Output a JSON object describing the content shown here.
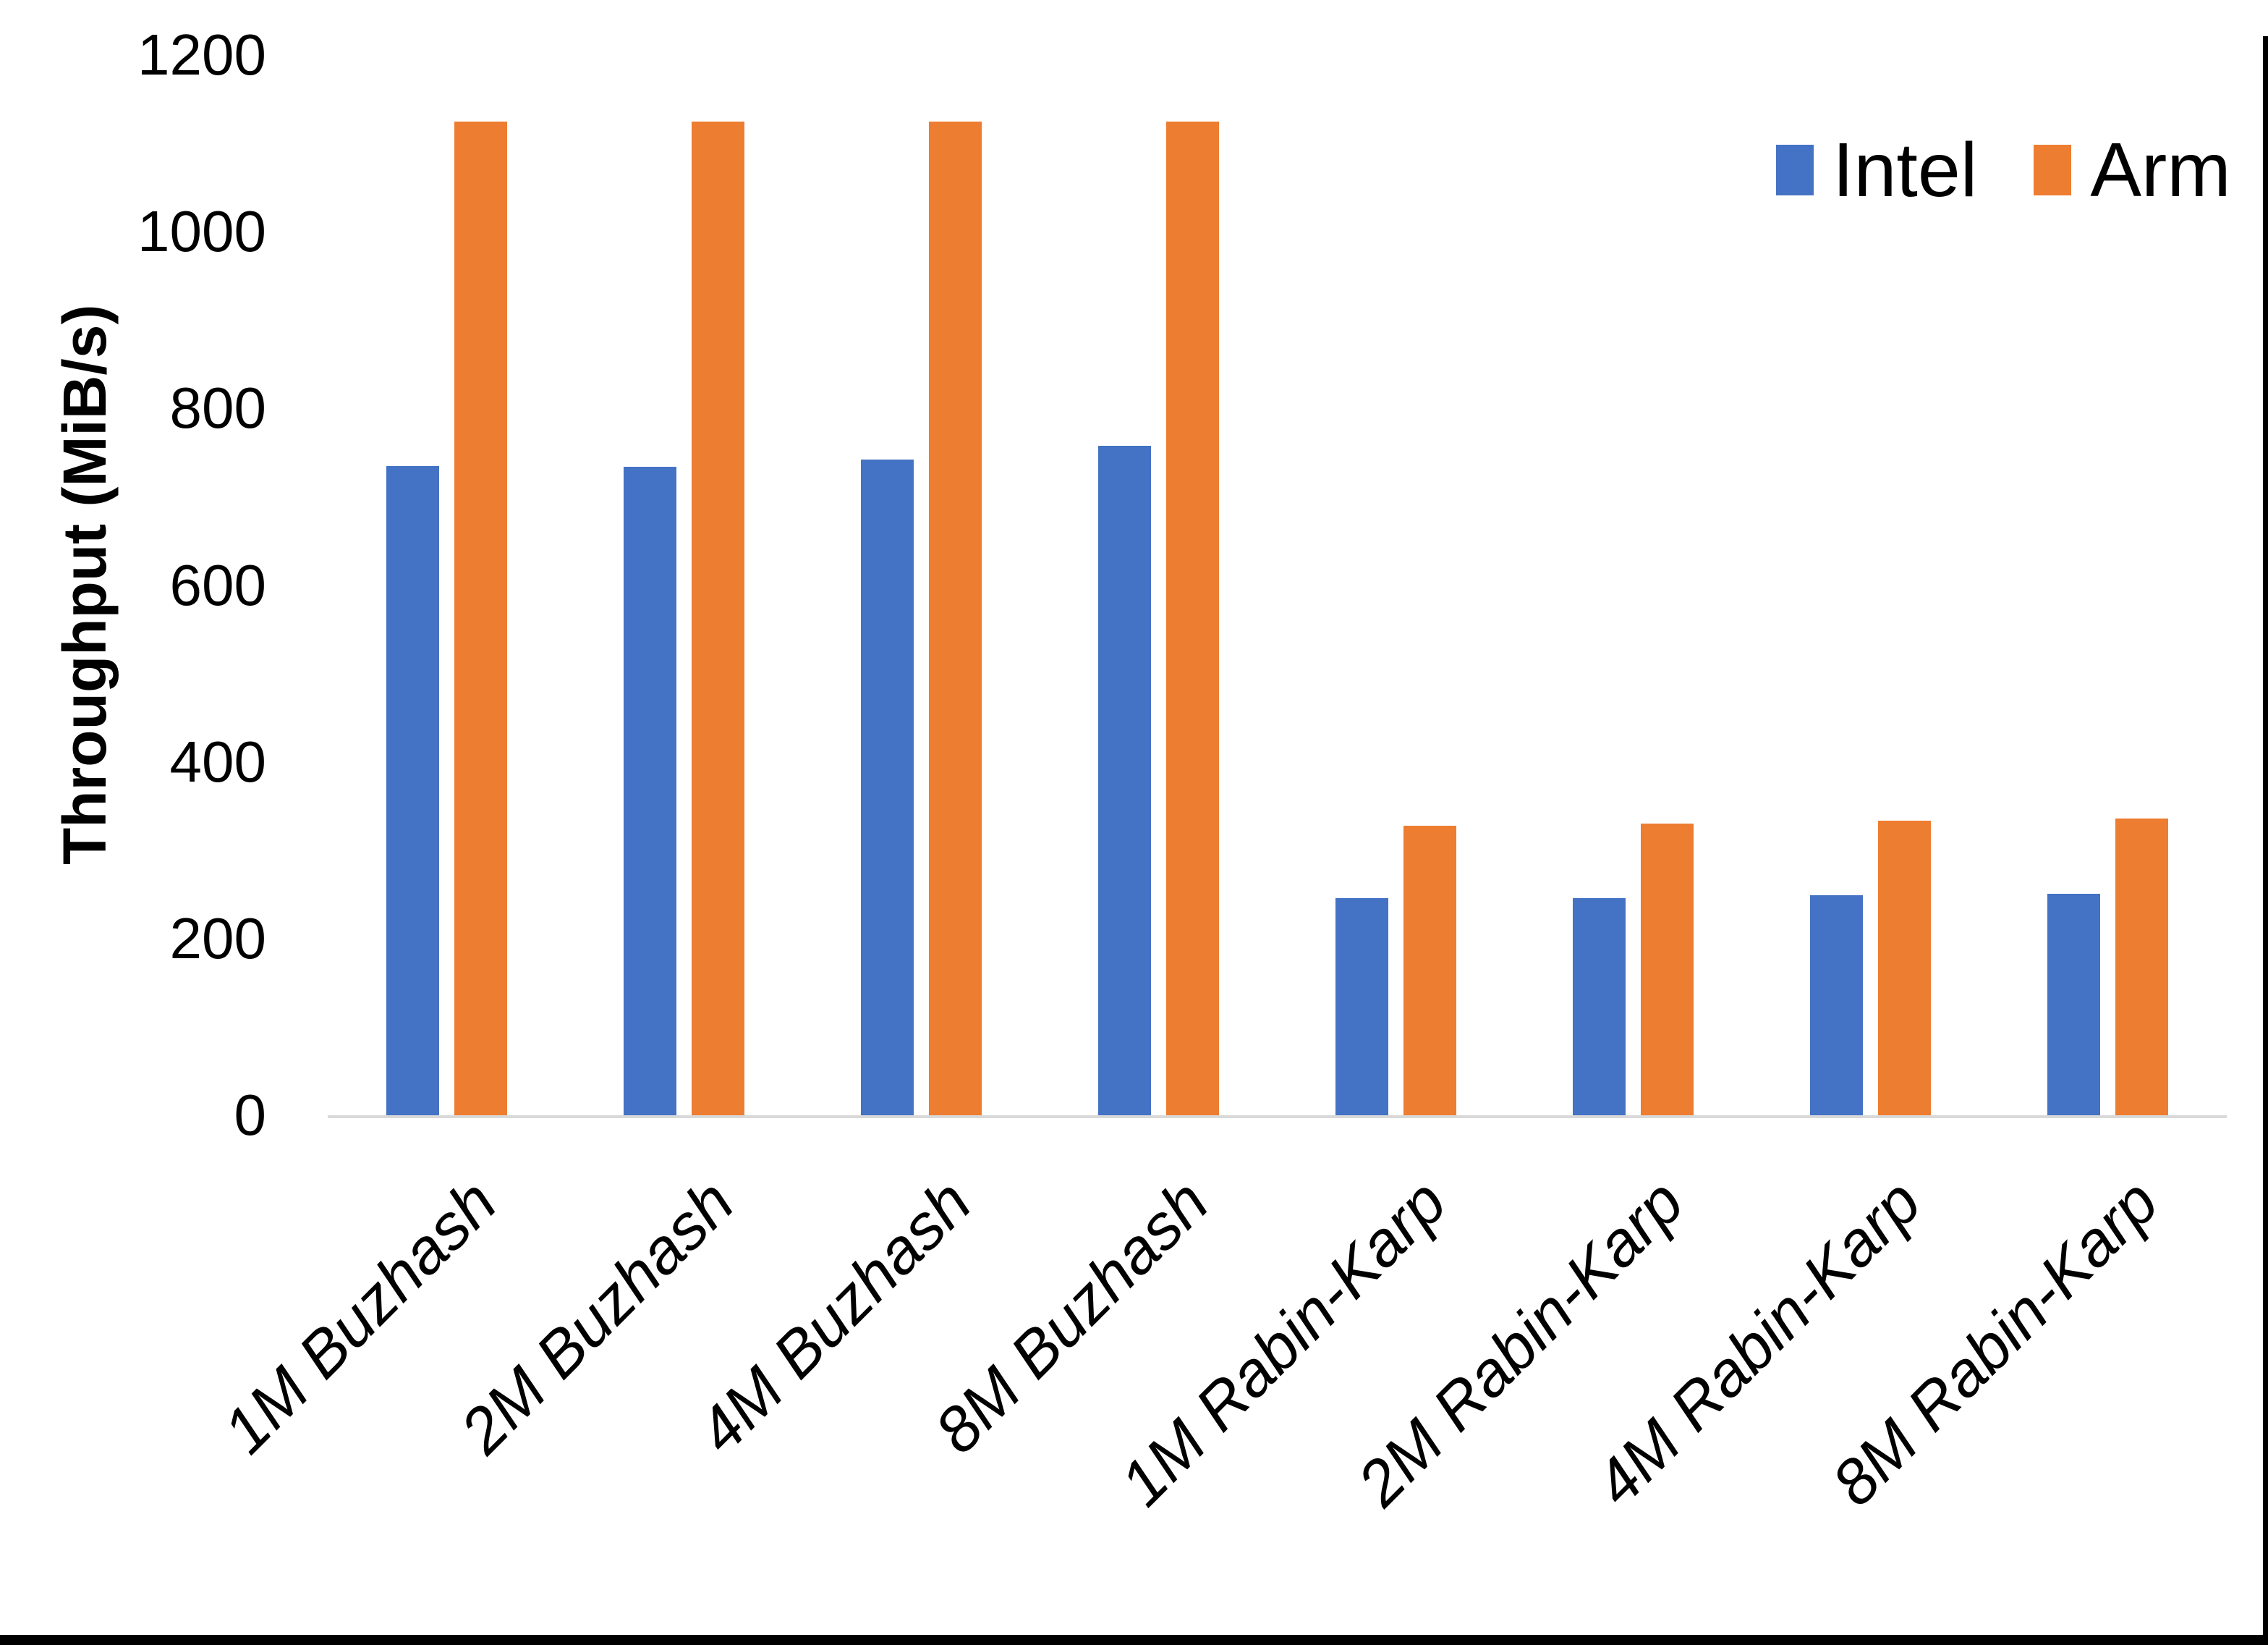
{
  "chart_data": {
    "type": "bar",
    "title": "",
    "ylabel": "Throughput (MiB/s)",
    "xlabel": "",
    "ylim": [
      0,
      1200
    ],
    "yticks": [
      0,
      200,
      400,
      600,
      800,
      1000,
      1200
    ],
    "grid": false,
    "legend_position": "top-right",
    "categories": [
      "1M Buzhash",
      "2M Buzhash",
      "4M Buzhash",
      "8M Buzhash",
      "1M Rabin-Karp",
      "2M Rabin-Karp",
      "4M Rabin-Karp",
      "8M Rabin-Karp"
    ],
    "series": [
      {
        "name": "Intel",
        "color": "#4472C4",
        "values": [
          735,
          734,
          742,
          758,
          246,
          246,
          249,
          251
        ]
      },
      {
        "name": "Arm",
        "color": "#ED7D31",
        "values": [
          1125,
          1125,
          1125,
          1125,
          328,
          330,
          333,
          336
        ]
      }
    ]
  },
  "colors": {
    "background": "#FFFFFF",
    "axis_line": "#D9D9D9",
    "text": "#000000",
    "frame_border": "#000000"
  }
}
